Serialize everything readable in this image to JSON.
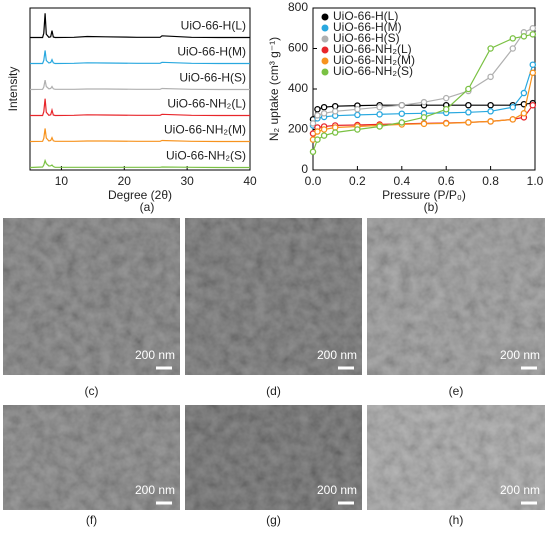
{
  "chart_data": [
    {
      "type": "line",
      "caption": "(a)",
      "xlabel": "Degree (2θ)",
      "ylabel": "Intensity",
      "xlim": [
        5,
        40
      ],
      "xticks": [
        10,
        20,
        30,
        40
      ],
      "series_labels": "inline",
      "x": [
        5,
        7,
        7.2,
        7.4,
        7.6,
        8,
        8.3,
        8.5,
        8.7,
        9,
        12,
        14.1,
        17,
        22,
        25.7,
        26,
        30.7,
        35,
        40
      ],
      "series": [
        {
          "name": "UiO-66-H(L)",
          "color": "#000000",
          "values": [
            2,
            2,
            20,
            100,
            15,
            3,
            5,
            30,
            4,
            2,
            3,
            6,
            5,
            3,
            3,
            9,
            3,
            2,
            2
          ]
        },
        {
          "name": "UiO-66-H(M)",
          "color": "#29a8df",
          "values": [
            2,
            2,
            15,
            55,
            14,
            4,
            6,
            18,
            5,
            2,
            3,
            5,
            4,
            3,
            3,
            7,
            3,
            2,
            2
          ]
        },
        {
          "name": "UiO-66-H(S)",
          "color": "#b0b0b0",
          "values": [
            2,
            3,
            12,
            40,
            14,
            5,
            6,
            14,
            5,
            3,
            3,
            4,
            4,
            3,
            3,
            6,
            3,
            2,
            2
          ]
        },
        {
          "name": "UiO-66-NH₂(L)",
          "color": "#e8262b",
          "values": [
            2,
            2,
            18,
            70,
            15,
            3,
            5,
            24,
            4,
            2,
            3,
            5,
            4,
            3,
            3,
            7,
            3,
            2,
            2
          ]
        },
        {
          "name": "UiO-66-NH₂(M)",
          "color": "#f7931e",
          "values": [
            2,
            3,
            15,
            55,
            16,
            4,
            6,
            18,
            5,
            3,
            3,
            4,
            4,
            3,
            3,
            6,
            3,
            2,
            2
          ]
        },
        {
          "name": "UiO-66-NH₂(S)",
          "color": "#7ac143",
          "values": [
            2,
            4,
            12,
            30,
            18,
            8,
            9,
            12,
            6,
            3,
            3,
            3,
            3,
            3,
            3,
            4,
            3,
            2,
            2
          ]
        }
      ]
    },
    {
      "type": "line",
      "markers": "circle",
      "caption": "(b)",
      "xlabel": "Pressure (P/P₀)",
      "ylabel": "N₂ uptake (cm³ g⁻¹)",
      "xlim": [
        0,
        1
      ],
      "ylim": [
        0,
        800
      ],
      "xticks": [
        {
          "value": 0,
          "label": "0.0"
        },
        0.2,
        0.4,
        0.6,
        0.8,
        {
          "value": 1,
          "label": "1.0"
        }
      ],
      "yticks": [
        0,
        200,
        400,
        600,
        800
      ],
      "legend": "upper left",
      "x": [
        0,
        0.02,
        0.05,
        0.1,
        0.2,
        0.3,
        0.4,
        0.5,
        0.6,
        0.7,
        0.8,
        0.9,
        0.95,
        0.99
      ],
      "series": [
        {
          "name": "UiO-66-H(L)",
          "color": "#000000",
          "values": [
            250,
            300,
            310,
            315,
            318,
            320,
            320,
            320,
            320,
            320,
            320,
            320,
            325,
            330
          ]
        },
        {
          "name": "UiO-66-H(M)",
          "color": "#29a8df",
          "values": [
            220,
            255,
            262,
            268,
            272,
            275,
            278,
            280,
            282,
            285,
            290,
            310,
            380,
            520
          ]
        },
        {
          "name": "UiO-66-H(S)",
          "color": "#b0b0b0",
          "values": [
            230,
            270,
            280,
            290,
            300,
            310,
            320,
            335,
            355,
            390,
            460,
            600,
            680,
            700
          ]
        },
        {
          "name": "UiO-66-NH₂(L)",
          "color": "#e8262b",
          "values": [
            180,
            210,
            215,
            220,
            222,
            225,
            228,
            230,
            232,
            235,
            240,
            250,
            260,
            320
          ]
        },
        {
          "name": "UiO-66-NH₂(M)",
          "color": "#f7931e",
          "values": [
            150,
            190,
            200,
            210,
            215,
            220,
            225,
            228,
            230,
            235,
            240,
            250,
            280,
            480
          ]
        },
        {
          "name": "UiO-66-NH₂(S)",
          "color": "#7ac143",
          "values": [
            90,
            150,
            170,
            185,
            200,
            215,
            235,
            260,
            300,
            400,
            600,
            650,
            660,
            670
          ]
        }
      ]
    }
  ],
  "images": [
    {
      "caption": "(c)",
      "scale_bar": "200 nm"
    },
    {
      "caption": "(d)",
      "scale_bar": "200 nm"
    },
    {
      "caption": "(e)",
      "scale_bar": "200 nm"
    },
    {
      "caption": "(f)",
      "scale_bar": "200 nm"
    },
    {
      "caption": "(g)",
      "scale_bar": "200 nm"
    },
    {
      "caption": "(h)",
      "scale_bar": "200 nm"
    }
  ]
}
